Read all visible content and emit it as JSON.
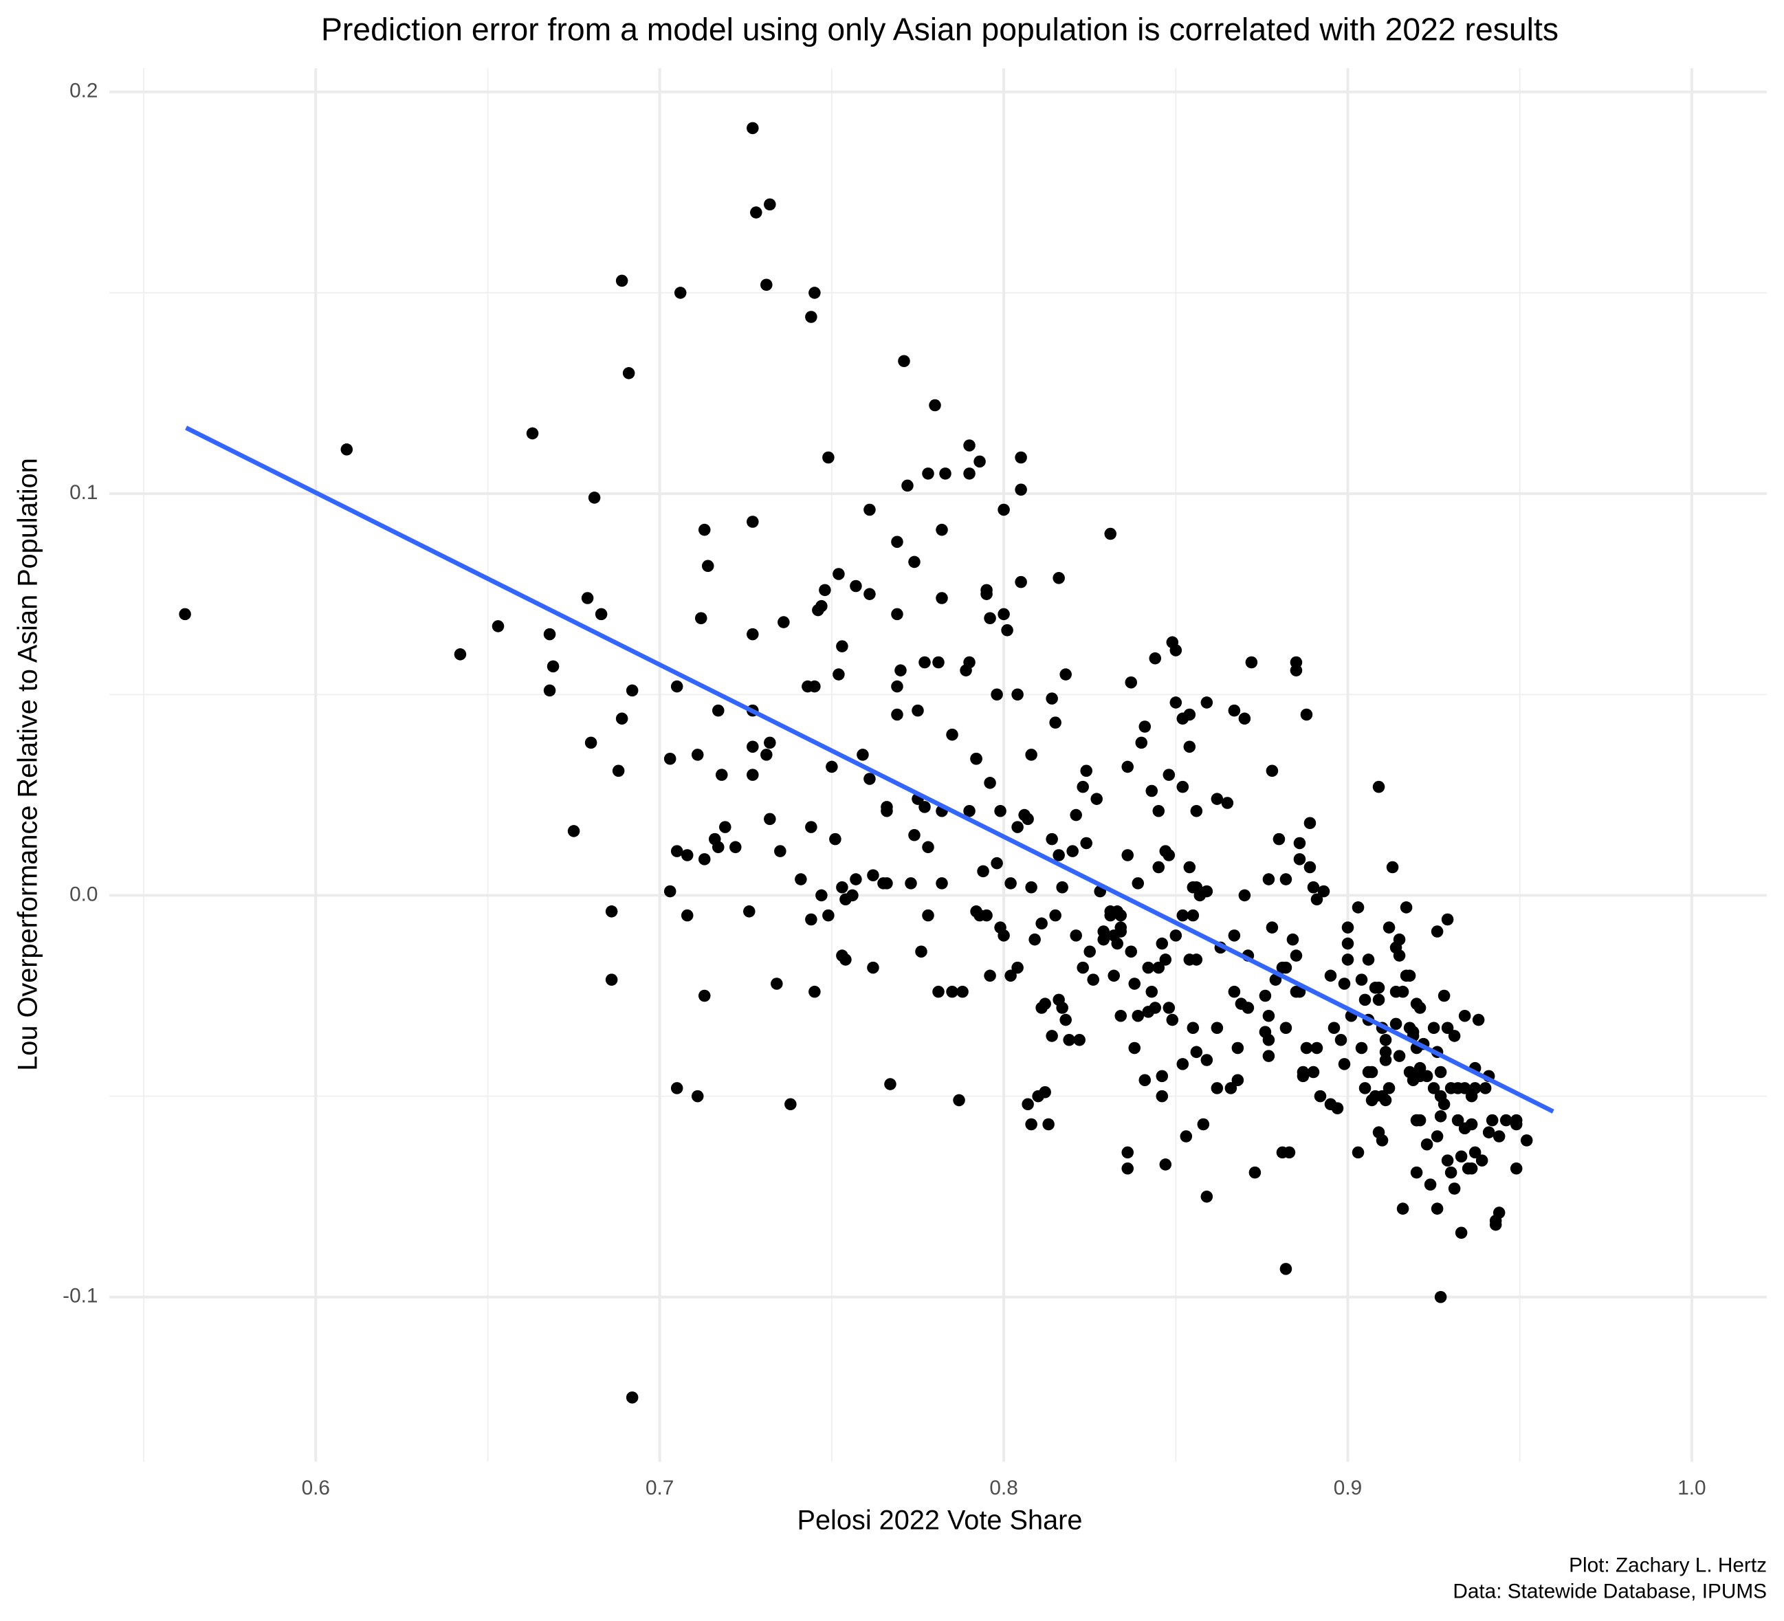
{
  "chart_data": {
    "type": "scatter",
    "title": "Prediction error from a model using only Asian population is correlated with 2022 results",
    "x_label": "Pelosi 2022 Vote Share",
    "y_label": "Lou Overperformance Relative to Asian Population",
    "caption": [
      "Plot: Zachary L. Hertz",
      "Data: Statewide Database, IPUMS"
    ],
    "xlim": [
      0.54,
      1.0218
    ],
    "ylim": [
      -0.141,
      0.2059
    ],
    "xticks": [
      0.6,
      0.7,
      0.8,
      0.9,
      {
        "value": 1,
        "label": "1.0"
      }
    ],
    "yticks": [
      -0.1,
      {
        "value": 0,
        "label": "0.0"
      },
      0.1,
      0.2
    ],
    "x_minor_ticks": [
      0.55,
      0.65,
      0.75,
      0.85,
      0.95
    ],
    "y_minor_ticks": [
      -0.05,
      0.05,
      0.15
    ],
    "grid": true,
    "color": "#000000",
    "x": [
      0.562,
      0.609,
      0.642,
      0.653,
      0.663,
      0.668,
      0.669,
      0.668,
      0.675,
      0.679,
      0.68,
      0.681,
      0.683,
      0.686,
      0.686,
      0.688,
      0.689,
      0.689,
      0.691,
      0.692,
      0.692,
      0.703,
      0.703,
      0.705,
      0.705,
      0.705,
      0.706,
      0.708,
      0.708,
      0.711,
      0.711,
      0.712,
      0.713,
      0.713,
      0.713,
      0.714,
      0.716,
      0.717,
      0.717,
      0.718,
      0.719,
      0.722,
      0.726,
      0.727,
      0.727,
      0.727,
      0.727,
      0.727,
      0.727,
      0.728,
      0.731,
      0.732,
      0.731,
      0.732,
      0.732,
      0.734,
      0.735,
      0.736,
      0.738,
      0.741,
      0.744,
      0.744,
      0.743,
      0.745,
      0.744,
      0.745,
      0.745,
      0.746,
      0.747,
      0.747,
      0.748,
      0.749,
      0.749,
      0.75,
      0.751,
      0.752,
      0.752,
      0.753,
      0.753,
      0.753,
      0.754,
      0.754,
      0.756,
      0.757,
      0.757,
      0.759,
      0.761,
      0.761,
      0.761,
      0.762,
      0.762,
      0.765,
      0.766,
      0.766,
      0.766,
      0.767,
      0.769,
      0.769,
      0.769,
      0.769,
      0.77,
      0.771,
      0.772,
      0.773,
      0.774,
      0.774,
      0.775,
      0.775,
      0.776,
      0.777,
      0.777,
      0.778,
      0.778,
      0.778,
      0.78,
      0.781,
      0.781,
      0.782,
      0.782,
      0.782,
      0.782,
      0.783,
      0.785,
      0.785,
      0.787,
      0.788,
      0.789,
      0.79,
      0.79,
      0.79,
      0.79,
      0.792,
      0.792,
      0.793,
      0.792,
      0.793,
      0.794,
      0.795,
      0.795,
      0.795,
      0.796,
      0.796,
      0.796,
      0.798,
      0.798,
      0.799,
      0.799,
      0.8,
      0.8,
      0.8,
      0.801,
      0.802,
      0.802,
      0.804,
      0.804,
      0.804,
      0.805,
      0.805,
      0.805,
      0.806,
      0.807,
      0.807,
      0.808,
      0.808,
      0.808,
      0.809,
      0.81,
      0.811,
      0.811,
      0.812,
      0.812,
      0.813,
      0.814,
      0.814,
      0.814,
      0.815,
      0.815,
      0.816,
      0.816,
      0.816,
      0.817,
      0.817,
      0.818,
      0.818,
      0.819,
      0.82,
      0.821,
      0.821,
      0.822,
      0.823,
      0.823,
      0.824,
      0.824,
      0.825,
      0.826,
      0.827,
      0.828,
      0.829,
      0.829,
      0.831,
      0.831,
      0.832,
      0.831,
      0.832,
      0.833,
      0.833,
      0.834,
      0.834,
      0.834,
      0.834,
      0.836,
      0.836,
      0.836,
      0.836,
      0.837,
      0.837,
      0.838,
      0.838,
      0.839,
      0.839,
      0.84,
      0.841,
      0.841,
      0.842,
      0.842,
      0.843,
      0.843,
      0.844,
      0.844,
      0.845,
      0.845,
      0.845,
      0.846,
      0.846,
      0.846,
      0.847,
      0.847,
      0.847,
      0.848,
      0.848,
      0.848,
      0.849,
      0.849,
      0.85,
      0.85,
      0.85,
      0.852,
      0.852,
      0.852,
      0.852,
      0.853,
      0.854,
      0.854,
      0.854,
      0.854,
      0.855,
      0.855,
      0.855,
      0.856,
      0.856,
      0.856,
      0.856,
      0.857,
      0.858,
      0.859,
      0.859,
      0.859,
      0.859,
      0.862,
      0.862,
      0.862,
      0.863,
      0.865,
      0.866,
      0.867,
      0.867,
      0.867,
      0.868,
      0.868,
      0.869,
      0.87,
      0.87,
      0.871,
      0.871,
      0.872,
      0.873,
      0.876,
      0.876,
      0.877,
      0.877,
      0.877,
      0.877,
      0.878,
      0.878,
      0.879,
      0.88,
      0.881,
      0.881,
      0.882,
      0.882,
      0.882,
      0.882,
      0.883,
      0.884,
      0.885,
      0.885,
      0.885,
      0.885,
      0.886,
      0.886,
      0.886,
      0.887,
      0.887,
      0.888,
      0.888,
      0.889,
      0.889,
      0.89,
      0.89,
      0.891,
      0.891,
      0.892,
      0.893,
      0.895,
      0.895,
      0.896,
      0.897,
      0.898,
      0.899,
      0.899,
      0.9,
      0.9,
      0.9,
      0.901,
      0.903,
      0.903,
      0.904,
      0.904,
      0.905,
      0.905,
      0.906,
      0.906,
      0.906,
      0.907,
      0.907,
      0.908,
      0.908,
      0.909,
      0.909,
      0.909,
      0.909,
      0.91,
      0.91,
      0.91,
      0.911,
      0.911,
      0.911,
      0.911,
      0.912,
      0.912,
      0.913,
      0.914,
      0.914,
      0.914,
      0.915,
      0.915,
      0.915,
      0.916,
      0.916,
      0.917,
      0.917,
      0.918,
      0.918,
      0.918,
      0.919,
      0.919,
      0.919,
      0.92,
      0.92,
      0.92,
      0.92,
      0.92,
      0.921,
      0.921,
      0.921,
      0.921,
      0.922,
      0.923,
      0.923,
      0.924,
      0.925,
      0.925,
      0.926,
      0.926,
      0.926,
      0.926,
      0.927,
      0.927,
      0.927,
      0.927,
      0.928,
      0.928,
      0.929,
      0.929,
      0.929,
      0.93,
      0.93,
      0.931,
      0.931,
      0.932,
      0.932,
      0.933,
      0.933,
      0.934,
      0.934,
      0.934,
      0.935,
      0.936,
      0.936,
      0.936,
      0.937,
      0.937,
      0.937,
      0.938,
      0.939,
      0.94,
      0.941,
      0.941,
      0.942,
      0.943,
      0.943,
      0.944,
      0.944,
      0.946,
      0.949,
      0.949,
      0.949,
      0.952
    ],
    "values": [
      0.07,
      0.111,
      0.06,
      0.067,
      0.115,
      0.065,
      0.057,
      0.051,
      0.016,
      0.074,
      0.038,
      0.099,
      0.07,
      -0.004,
      -0.021,
      0.031,
      0.044,
      0.153,
      0.13,
      0.051,
      -0.125,
      0.034,
      0.001,
      0.052,
      0.011,
      -0.048,
      0.15,
      0.01,
      -0.005,
      -0.05,
      0.035,
      0.069,
      0.009,
      0.091,
      -0.025,
      0.082,
      0.014,
      0.012,
      0.046,
      0.03,
      0.017,
      0.012,
      -0.004,
      0.191,
      0.093,
      0.065,
      0.046,
      0.037,
      0.03,
      0.17,
      0.152,
      0.172,
      0.035,
      0.038,
      0.019,
      -0.022,
      0.011,
      0.068,
      -0.052,
      0.004,
      -0.006,
      0.144,
      0.052,
      0.052,
      0.017,
      -0.024,
      0.15,
      0.071,
      0.072,
      0.0,
      0.076,
      0.109,
      -0.005,
      0.032,
      0.014,
      0.08,
      0.055,
      0.062,
      0.002,
      -0.015,
      -0.016,
      -0.001,
      0.0,
      0.004,
      0.077,
      0.035,
      0.029,
      0.096,
      0.075,
      -0.018,
      0.005,
      0.003,
      0.021,
      0.003,
      0.022,
      -0.047,
      0.052,
      0.045,
      0.07,
      0.088,
      0.056,
      0.133,
      0.102,
      0.003,
      0.083,
      0.015,
      0.046,
      0.024,
      -0.014,
      0.022,
      0.058,
      0.105,
      -0.005,
      0.012,
      0.122,
      0.058,
      -0.024,
      0.074,
      0.091,
      0.021,
      0.003,
      0.105,
      0.04,
      -0.024,
      -0.051,
      -0.024,
      0.056,
      0.112,
      0.105,
      0.058,
      0.021,
      0.034,
      -0.004,
      0.108,
      0.034,
      -0.005,
      0.006,
      0.076,
      0.075,
      -0.005,
      -0.02,
      0.028,
      0.069,
      0.008,
      0.05,
      0.021,
      -0.008,
      -0.01,
      0.096,
      0.07,
      0.066,
      -0.02,
      0.003,
      -0.018,
      0.017,
      0.05,
      0.109,
      0.101,
      0.078,
      0.02,
      -0.052,
      0.019,
      0.035,
      -0.057,
      0.002,
      -0.011,
      -0.05,
      -0.028,
      -0.007,
      -0.049,
      -0.027,
      -0.057,
      0.014,
      -0.035,
      0.049,
      0.043,
      -0.005,
      0.01,
      0.079,
      -0.026,
      -0.028,
      0.002,
      0.055,
      -0.031,
      -0.036,
      0.011,
      0.02,
      -0.01,
      -0.036,
      -0.018,
      0.027,
      0.031,
      0.013,
      -0.014,
      -0.021,
      0.024,
      0.001,
      -0.009,
      -0.011,
      0.09,
      -0.004,
      -0.02,
      -0.005,
      -0.01,
      -0.012,
      -0.004,
      -0.009,
      -0.008,
      -0.03,
      -0.005,
      0.032,
      0.01,
      -0.064,
      -0.068,
      -0.014,
      0.053,
      -0.022,
      -0.038,
      0.003,
      -0.03,
      0.038,
      -0.046,
      0.042,
      -0.029,
      -0.018,
      0.026,
      -0.024,
      0.059,
      -0.028,
      0.021,
      -0.018,
      0.007,
      -0.045,
      -0.05,
      -0.012,
      -0.016,
      0.011,
      -0.067,
      0.03,
      0.01,
      -0.028,
      0.063,
      -0.031,
      0.061,
      0.048,
      -0.01,
      0.044,
      0.027,
      -0.005,
      -0.042,
      -0.06,
      0.045,
      0.007,
      0.037,
      -0.016,
      -0.033,
      -0.005,
      0.002,
      0.002,
      -0.039,
      0.021,
      -0.016,
      0.0,
      -0.057,
      -0.075,
      0.048,
      -0.041,
      0.001,
      0.024,
      -0.033,
      -0.048,
      -0.013,
      0.023,
      -0.048,
      -0.024,
      0.046,
      -0.01,
      -0.038,
      -0.046,
      -0.027,
      0.0,
      0.044,
      -0.028,
      -0.015,
      0.058,
      -0.069,
      -0.025,
      -0.034,
      0.004,
      -0.03,
      -0.036,
      -0.04,
      0.031,
      -0.008,
      -0.021,
      0.014,
      -0.018,
      -0.064,
      0.004,
      -0.018,
      -0.093,
      -0.033,
      -0.064,
      -0.011,
      -0.015,
      0.058,
      0.056,
      -0.024,
      0.013,
      0.009,
      -0.024,
      -0.044,
      -0.045,
      0.045,
      -0.038,
      0.018,
      0.007,
      0.002,
      -0.044,
      -0.038,
      -0.001,
      -0.05,
      0.001,
      -0.02,
      -0.052,
      -0.033,
      -0.053,
      -0.036,
      -0.042,
      -0.022,
      -0.012,
      -0.008,
      -0.016,
      -0.03,
      -0.003,
      -0.064,
      -0.038,
      -0.021,
      -0.048,
      -0.026,
      -0.044,
      -0.016,
      -0.031,
      -0.051,
      -0.044,
      -0.023,
      -0.05,
      0.027,
      -0.023,
      -0.059,
      -0.026,
      -0.061,
      -0.05,
      -0.033,
      -0.051,
      -0.039,
      -0.036,
      -0.041,
      -0.008,
      -0.048,
      0.007,
      -0.024,
      -0.013,
      -0.032,
      -0.011,
      -0.04,
      -0.015,
      -0.024,
      -0.078,
      -0.02,
      -0.003,
      -0.044,
      -0.02,
      -0.033,
      -0.034,
      -0.035,
      -0.046,
      -0.056,
      -0.038,
      -0.069,
      -0.027,
      -0.056,
      -0.043,
      -0.045,
      -0.028,
      -0.056,
      -0.037,
      -0.045,
      -0.062,
      -0.072,
      -0.033,
      -0.048,
      -0.06,
      -0.039,
      -0.078,
      -0.009,
      -0.044,
      -0.1,
      -0.05,
      -0.055,
      -0.052,
      -0.025,
      -0.006,
      -0.066,
      -0.033,
      -0.069,
      -0.048,
      -0.035,
      -0.073,
      -0.048,
      -0.056,
      -0.065,
      -0.084,
      -0.058,
      -0.048,
      -0.03,
      -0.068,
      -0.05,
      -0.057,
      -0.068,
      -0.043,
      -0.064,
      -0.048,
      -0.031,
      -0.066,
      -0.048,
      -0.045,
      -0.059,
      -0.056,
      -0.081,
      -0.082,
      -0.06,
      -0.079,
      -0.056,
      -0.056,
      -0.068,
      -0.057,
      -0.061
    ],
    "trend": {
      "x": [
        0.5623,
        0.9597
      ],
      "values": [
        0.1164,
        -0.0538
      ],
      "color": "#3366FF"
    }
  }
}
